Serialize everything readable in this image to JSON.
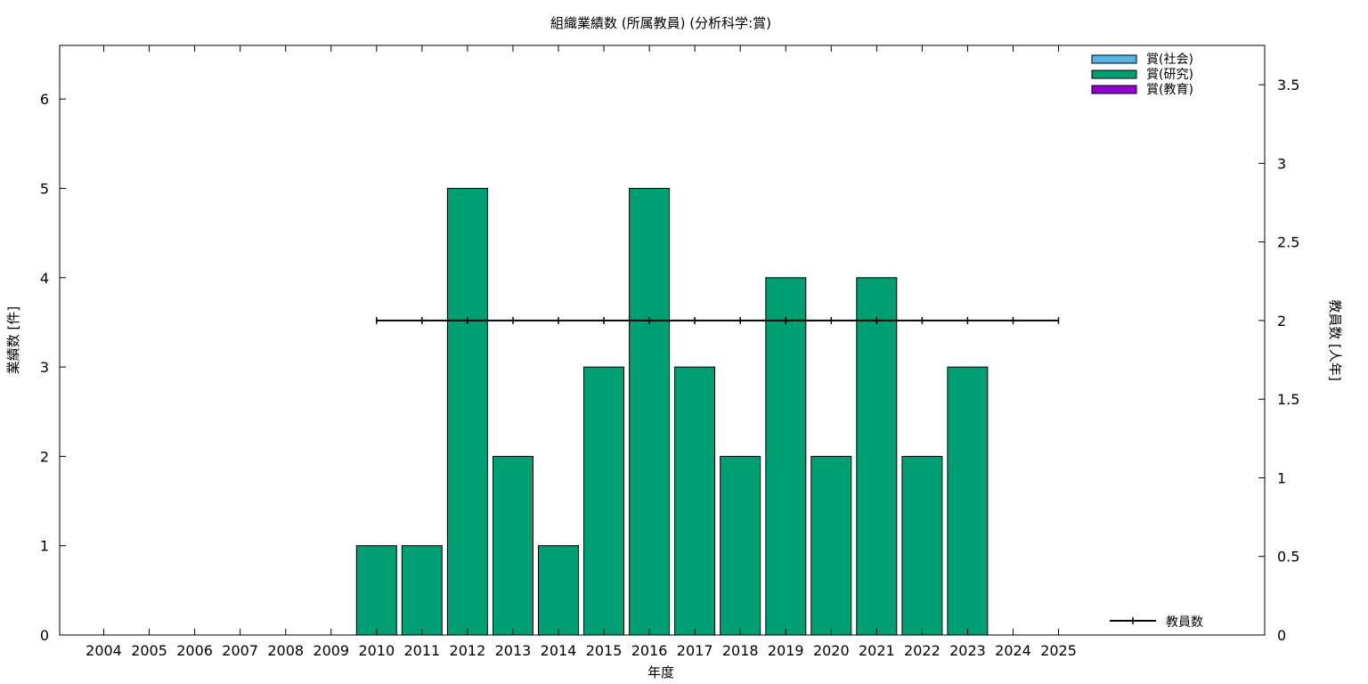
{
  "chart_data": {
    "type": "bar",
    "title": "組織業績数 (所属教員) (分析科学:賞)",
    "xlabel": "年度",
    "ylabel": "業績数 [件]",
    "y2label": "教員数 [人年]",
    "categories": [
      "2004",
      "2005",
      "2006",
      "2007",
      "2008",
      "2009",
      "2010",
      "2011",
      "2012",
      "2013",
      "2014",
      "2015",
      "2016",
      "2017",
      "2018",
      "2019",
      "2020",
      "2021",
      "2022",
      "2023",
      "2024",
      "2025"
    ],
    "series": [
      {
        "name": "賞(社会)",
        "color": "#56b4e9",
        "values": [
          0,
          0,
          0,
          0,
          0,
          0,
          0,
          0,
          0,
          0,
          0,
          0,
          0,
          0,
          0,
          0,
          0,
          0,
          0,
          0,
          0,
          0
        ]
      },
      {
        "name": "賞(研究)",
        "color": "#009e73",
        "values": [
          0,
          0,
          0,
          0,
          0,
          0,
          1,
          1,
          5,
          2,
          1,
          3,
          5,
          3,
          2,
          4,
          2,
          4,
          2,
          3,
          0,
          0
        ]
      },
      {
        "name": "賞(教育)",
        "color": "#9400d3",
        "values": [
          0,
          0,
          0,
          0,
          0,
          0,
          0,
          0,
          0,
          0,
          0,
          0,
          0,
          0,
          0,
          0,
          0,
          0,
          0,
          0,
          0,
          0
        ]
      }
    ],
    "line_series": {
      "name": "教員数",
      "color": "#000000",
      "axis": "y2",
      "x": [
        "2010",
        "2011",
        "2012",
        "2013",
        "2014",
        "2015",
        "2016",
        "2017",
        "2018",
        "2019",
        "2020",
        "2021",
        "2022",
        "2023",
        "2024",
        "2025"
      ],
      "values": [
        2,
        2,
        2,
        2,
        2,
        2,
        2,
        2,
        2,
        2,
        2,
        2,
        2,
        2,
        2,
        2
      ]
    },
    "ylim": [
      0,
      6.6
    ],
    "yticks": [
      0,
      1,
      2,
      3,
      4,
      5,
      6
    ],
    "y2lim": [
      0,
      3.75
    ],
    "y2ticks": [
      0,
      0.5,
      1,
      1.5,
      2,
      2.5,
      3,
      3.5
    ],
    "legend_position": "top-right",
    "grid": false
  }
}
